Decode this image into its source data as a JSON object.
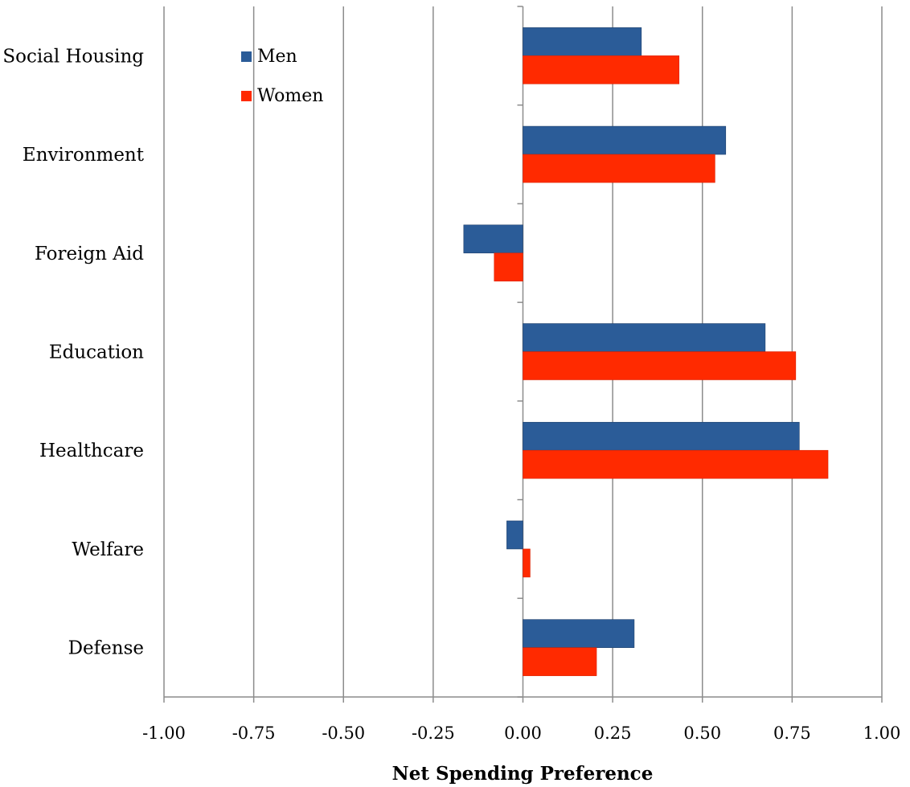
{
  "chart_data": {
    "type": "bar",
    "orientation": "horizontal",
    "title": "",
    "xlabel": "Net Spending Preference",
    "ylabel": "",
    "xlim": [
      -1.0,
      1.0
    ],
    "xticks": [
      -1.0,
      -0.75,
      -0.5,
      -0.25,
      0.0,
      0.25,
      0.5,
      0.75,
      1.0
    ],
    "tick_labels": [
      "-1.00",
      "-0.75",
      "-0.50",
      "-0.25",
      "0.00",
      "0.25",
      "0.50",
      "0.75",
      "1.00"
    ],
    "categories": [
      "Social Housing",
      "Environment",
      "Foreign Aid",
      "Education",
      "Healthcare",
      "Welfare",
      "Defense"
    ],
    "series": [
      {
        "name": "Men",
        "color": "#2B5C98",
        "values": [
          0.33,
          0.565,
          -0.165,
          0.675,
          0.77,
          -0.045,
          0.31
        ]
      },
      {
        "name": "Women",
        "color": "#FF2A00",
        "values": [
          0.435,
          0.535,
          -0.08,
          0.76,
          0.85,
          0.02,
          0.205
        ]
      }
    ],
    "grid": "vertical major gridlines",
    "legend_position": "top-left"
  }
}
